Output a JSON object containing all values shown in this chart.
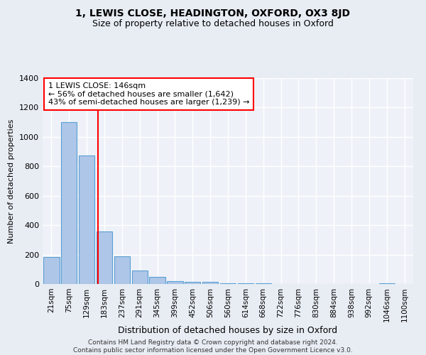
{
  "title": "1, LEWIS CLOSE, HEADINGTON, OXFORD, OX3 8JD",
  "subtitle": "Size of property relative to detached houses in Oxford",
  "xlabel": "Distribution of detached houses by size in Oxford",
  "ylabel": "Number of detached properties",
  "footer_line1": "Contains HM Land Registry data © Crown copyright and database right 2024.",
  "footer_line2": "Contains public sector information licensed under the Open Government Licence v3.0.",
  "bins": [
    "21sqm",
    "75sqm",
    "129sqm",
    "183sqm",
    "237sqm",
    "291sqm",
    "345sqm",
    "399sqm",
    "452sqm",
    "506sqm",
    "560sqm",
    "614sqm",
    "668sqm",
    "722sqm",
    "776sqm",
    "830sqm",
    "884sqm",
    "938sqm",
    "992sqm",
    "1046sqm",
    "1100sqm"
  ],
  "values": [
    185,
    1100,
    875,
    355,
    190,
    90,
    50,
    20,
    15,
    15,
    5,
    5,
    5,
    0,
    0,
    0,
    0,
    0,
    0,
    5,
    0
  ],
  "bar_color": "#aec6e8",
  "bar_edge_color": "#5a9fd4",
  "red_line_x": 2.62,
  "annotation_text": "1 LEWIS CLOSE: 146sqm\n← 56% of detached houses are smaller (1,642)\n43% of semi-detached houses are larger (1,239) →",
  "annotation_box_color": "white",
  "annotation_box_edge_color": "red",
  "ylim": [
    0,
    1400
  ],
  "yticks": [
    0,
    200,
    400,
    600,
    800,
    1000,
    1200,
    1400
  ],
  "bg_color": "#e8edf4",
  "plot_bg_color": "#eef2f8",
  "grid_color": "white",
  "title_fontsize": 10,
  "subtitle_fontsize": 9
}
